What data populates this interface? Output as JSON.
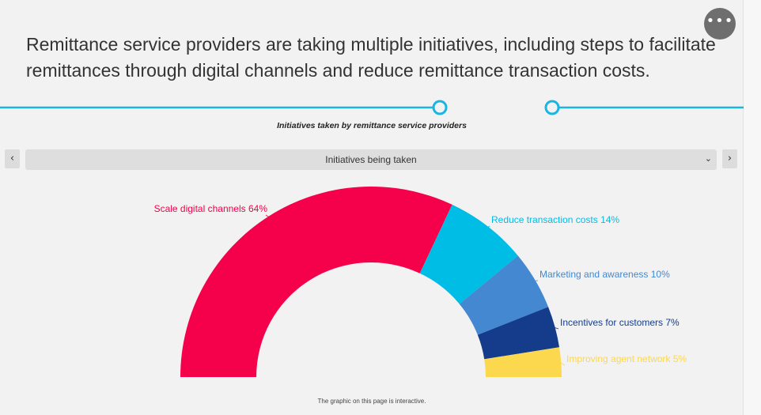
{
  "header": {
    "more_icon": "ellipsis-icon",
    "more_label": "•••",
    "headline": "Remittance service providers are taking multiple initiatives, including steps to facilitate remittances through digital channels and reduce remittance transaction costs."
  },
  "timeline": {
    "color": "#19b6e0"
  },
  "controls": {
    "prev_label": "‹",
    "next_label": "›",
    "dropdown_value": "Initiatives being taken",
    "dropdown_chevron": "⌄"
  },
  "chart_data": {
    "type": "pie",
    "variant": "semi-donut",
    "title": "Initiatives taken by remittance service providers",
    "slices": [
      {
        "name": "Scale digital channels",
        "value": 64,
        "color": "#f5004a",
        "label": "Scale digital channels 64%"
      },
      {
        "name": "Reduce transaction costs",
        "value": 14,
        "color": "#00bde6",
        "label": "Reduce transaction costs 14%"
      },
      {
        "name": "Marketing and awareness",
        "value": 10,
        "color": "#4388d0",
        "label": "Marketing and awareness 10%"
      },
      {
        "name": "Incentives for customers",
        "value": 7,
        "color": "#153c8a",
        "label": "Incentives for customers 7%"
      },
      {
        "name": "Improving agent network",
        "value": 5,
        "color": "#fcd84f",
        "label": "Improving agent network 5%"
      }
    ]
  },
  "footer": {
    "note": "The graphic on this page is interactive."
  }
}
